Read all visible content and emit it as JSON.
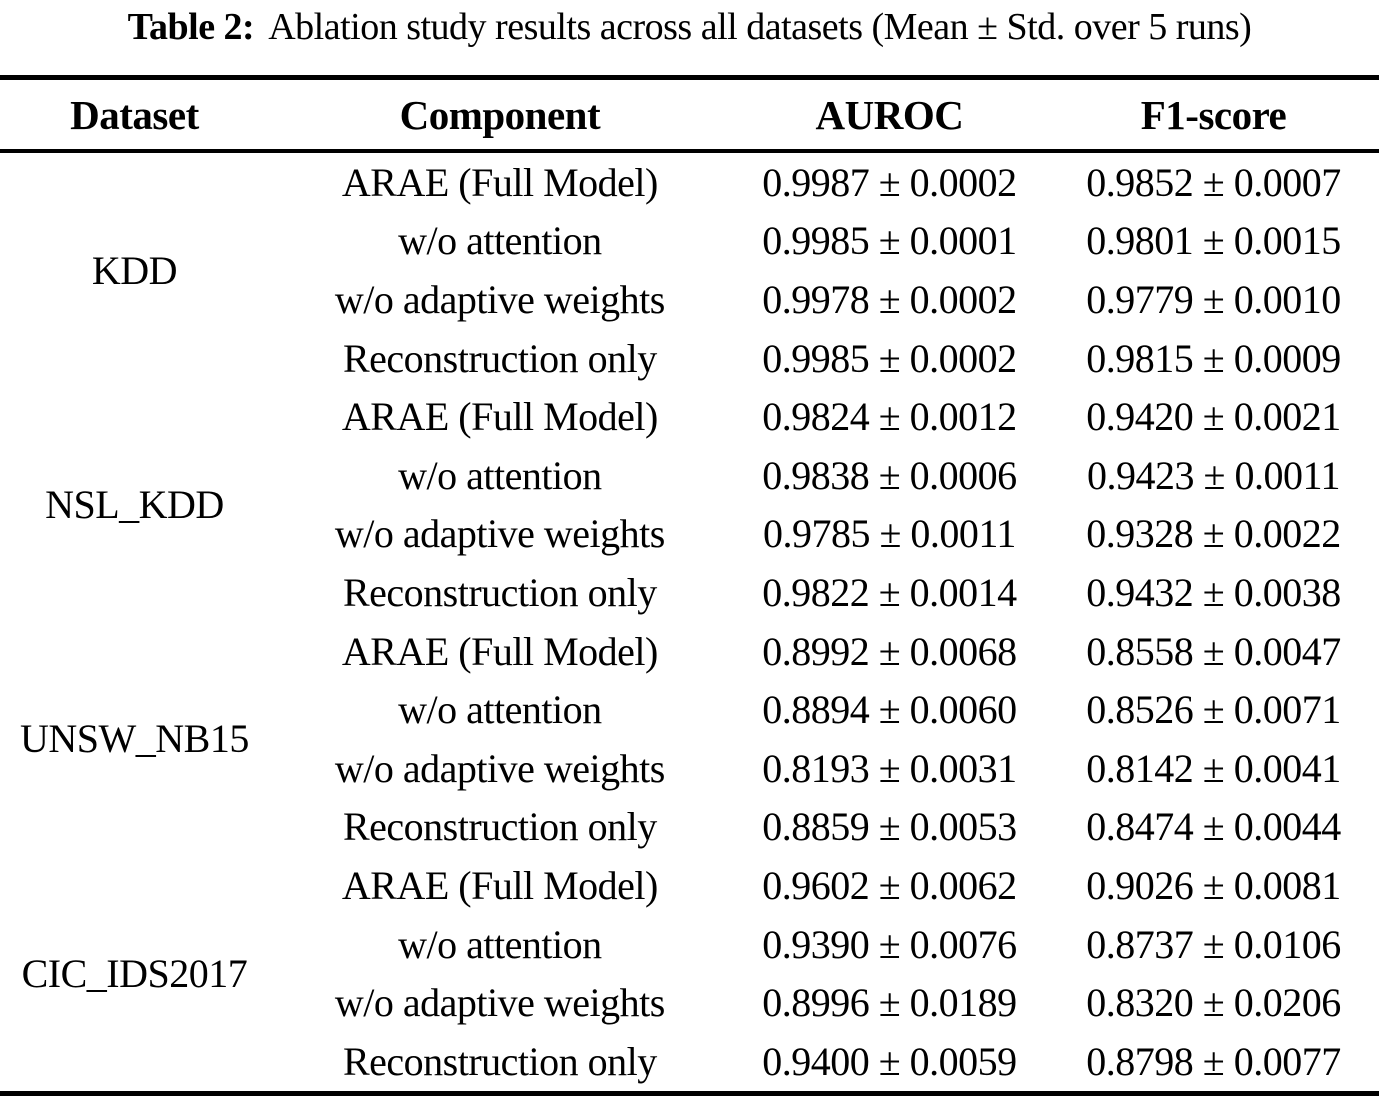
{
  "caption": {
    "label": "Table 2:",
    "text": "Ablation study results across all datasets (Mean ± Std. over 5 runs)"
  },
  "table": {
    "headers": [
      "Dataset",
      "Component",
      "AUROC",
      "F1-score"
    ],
    "groups": [
      {
        "dataset": "KDD",
        "rows": [
          {
            "component": "ARAE (Full Model)",
            "auroc": "0.9987 ± 0.0002",
            "f1": "0.9852 ± 0.0007"
          },
          {
            "component": "w/o attention",
            "auroc": "0.9985 ± 0.0001",
            "f1": "0.9801 ± 0.0015"
          },
          {
            "component": "w/o adaptive weights",
            "auroc": "0.9978 ± 0.0002",
            "f1": "0.9779 ± 0.0010"
          },
          {
            "component": "Reconstruction only",
            "auroc": "0.9985 ± 0.0002",
            "f1": "0.9815 ± 0.0009"
          }
        ]
      },
      {
        "dataset": "NSL_KDD",
        "rows": [
          {
            "component": "ARAE (Full Model)",
            "auroc": "0.9824 ± 0.0012",
            "f1": "0.9420 ± 0.0021"
          },
          {
            "component": "w/o attention",
            "auroc": "0.9838 ± 0.0006",
            "f1": "0.9423 ± 0.0011"
          },
          {
            "component": "w/o adaptive weights",
            "auroc": "0.9785 ± 0.0011",
            "f1": "0.9328 ± 0.0022"
          },
          {
            "component": "Reconstruction only",
            "auroc": "0.9822 ± 0.0014",
            "f1": "0.9432 ± 0.0038"
          }
        ]
      },
      {
        "dataset": "UNSW_NB15",
        "rows": [
          {
            "component": "ARAE (Full Model)",
            "auroc": "0.8992 ± 0.0068",
            "f1": "0.8558 ± 0.0047"
          },
          {
            "component": "w/o attention",
            "auroc": "0.8894 ± 0.0060",
            "f1": "0.8526 ± 0.0071"
          },
          {
            "component": "w/o adaptive weights",
            "auroc": "0.8193 ± 0.0031",
            "f1": "0.8142 ± 0.0041"
          },
          {
            "component": "Reconstruction only",
            "auroc": "0.8859 ± 0.0053",
            "f1": "0.8474 ± 0.0044"
          }
        ]
      },
      {
        "dataset": "CIC_IDS2017",
        "rows": [
          {
            "component": "ARAE (Full Model)",
            "auroc": "0.9602 ± 0.0062",
            "f1": "0.9026 ± 0.0081"
          },
          {
            "component": "w/o attention",
            "auroc": "0.9390 ± 0.0076",
            "f1": "0.8737 ± 0.0106"
          },
          {
            "component": "w/o adaptive weights",
            "auroc": "0.8996 ± 0.0189",
            "f1": "0.8320 ± 0.0206"
          },
          {
            "component": "Reconstruction only",
            "auroc": "0.9400 ± 0.0059",
            "f1": "0.8798 ± 0.0077"
          }
        ]
      }
    ]
  },
  "chart_data": {
    "type": "table",
    "title": "Table 2: Ablation study results across all datasets (Mean ± Std. over 5 runs)",
    "columns": [
      "Dataset",
      "Component",
      "AUROC",
      "F1-score"
    ],
    "rows": [
      [
        "KDD",
        "ARAE (Full Model)",
        "0.9987 ± 0.0002",
        "0.9852 ± 0.0007"
      ],
      [
        "KDD",
        "w/o attention",
        "0.9985 ± 0.0001",
        "0.9801 ± 0.0015"
      ],
      [
        "KDD",
        "w/o adaptive weights",
        "0.9978 ± 0.0002",
        "0.9779 ± 0.0010"
      ],
      [
        "KDD",
        "Reconstruction only",
        "0.9985 ± 0.0002",
        "0.9815 ± 0.0009"
      ],
      [
        "NSL_KDD",
        "ARAE (Full Model)",
        "0.9824 ± 0.0012",
        "0.9420 ± 0.0021"
      ],
      [
        "NSL_KDD",
        "w/o attention",
        "0.9838 ± 0.0006",
        "0.9423 ± 0.0011"
      ],
      [
        "NSL_KDD",
        "w/o adaptive weights",
        "0.9785 ± 0.0011",
        "0.9328 ± 0.0022"
      ],
      [
        "NSL_KDD",
        "Reconstruction only",
        "0.9822 ± 0.0014",
        "0.9432 ± 0.0038"
      ],
      [
        "UNSW_NB15",
        "ARAE (Full Model)",
        "0.8992 ± 0.0068",
        "0.8558 ± 0.0047"
      ],
      [
        "UNSW_NB15",
        "w/o attention",
        "0.8894 ± 0.0060",
        "0.8526 ± 0.0071"
      ],
      [
        "UNSW_NB15",
        "w/o adaptive weights",
        "0.8193 ± 0.0031",
        "0.8142 ± 0.0041"
      ],
      [
        "UNSW_NB15",
        "Reconstruction only",
        "0.8859 ± 0.0053",
        "0.8474 ± 0.0044"
      ],
      [
        "CIC_IDS2017",
        "ARAE (Full Model)",
        "0.9602 ± 0.0062",
        "0.9026 ± 0.0081"
      ],
      [
        "CIC_IDS2017",
        "w/o attention",
        "0.9390 ± 0.0076",
        "0.8737 ± 0.0106"
      ],
      [
        "CIC_IDS2017",
        "w/o adaptive weights",
        "0.8996 ± 0.0189",
        "0.8320 ± 0.0206"
      ],
      [
        "CIC_IDS2017",
        "Reconstruction only",
        "0.9400 ± 0.0059",
        "0.8798 ± 0.0077"
      ]
    ],
    "colors": {
      "text": "#000000",
      "background": "#ffffff",
      "rules": "#000000"
    }
  }
}
